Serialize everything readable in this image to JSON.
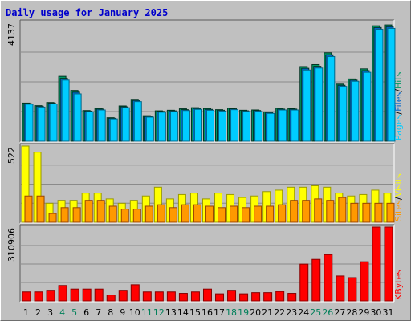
{
  "chart_data": {
    "type": "bar",
    "title": "Daily usage for January 2025",
    "categories": [
      "1",
      "2",
      "3",
      "4",
      "5",
      "6",
      "7",
      "8",
      "9",
      "10",
      "11",
      "12",
      "13",
      "14",
      "15",
      "16",
      "17",
      "18",
      "19",
      "20",
      "21",
      "22",
      "23",
      "24",
      "25",
      "26",
      "27",
      "28",
      "29",
      "30",
      "31"
    ],
    "weekend_days": [
      "4",
      "5",
      "11",
      "12",
      "18",
      "19",
      "25",
      "26"
    ],
    "panels": [
      {
        "name": "pages-files-hits",
        "max_label": "4137",
        "ymax": 4137,
        "legend": [
          "Pages",
          "/",
          "Files",
          "/",
          "Hits"
        ],
        "series": [
          {
            "name": "Hits",
            "color": "#009966",
            "values": [
              1330,
              1240,
              1350,
              2260,
              1770,
              1070,
              1150,
              820,
              1230,
              1460,
              890,
              1060,
              1080,
              1130,
              1170,
              1140,
              1100,
              1150,
              1080,
              1090,
              1020,
              1150,
              1140,
              2600,
              2670,
              3080,
              1990,
              2170,
              2520,
              4020,
              4050
            ]
          },
          {
            "name": "Files",
            "color": "#0066cc",
            "values": [
              1310,
              1220,
              1330,
              2190,
              1710,
              1050,
              1120,
              800,
              1200,
              1420,
              860,
              1040,
              1060,
              1100,
              1140,
              1110,
              1080,
              1130,
              1060,
              1070,
              1000,
              1120,
              1120,
              2540,
              2610,
              3010,
              1950,
              2130,
              2460,
              3960,
              3990
            ]
          },
          {
            "name": "Pages",
            "color": "#00ccff",
            "values": [
              1290,
              1190,
              1300,
              2130,
              1650,
              1030,
              1090,
              780,
              1170,
              1380,
              840,
              1010,
              1030,
              1070,
              1110,
              1080,
              1050,
              1100,
              1040,
              1040,
              970,
              1090,
              1090,
              2480,
              2550,
              2950,
              1910,
              2090,
              2400,
              3900,
              3930
            ]
          }
        ]
      },
      {
        "name": "visits-sites",
        "max_label": "522",
        "ymax": 522,
        "legend": [
          "Sites",
          "/",
          "Visits"
        ],
        "series": [
          {
            "name": "Visits",
            "color": "#ffff00",
            "values": [
              522,
              480,
              130,
              150,
              150,
              200,
              200,
              160,
              130,
              150,
              180,
              240,
              160,
              190,
              200,
              160,
              200,
              190,
              170,
              180,
              210,
              220,
              240,
              240,
              250,
              240,
              200,
              180,
              190,
              220,
              200
            ]
          },
          {
            "name": "Sites",
            "color": "#ff9900",
            "values": [
              180,
              180,
              60,
              100,
              100,
              150,
              150,
              110,
              90,
              90,
              110,
              120,
              100,
              120,
              120,
              110,
              100,
              110,
              100,
              110,
              110,
              120,
              150,
              150,
              160,
              150,
              170,
              130,
              130,
              130,
              130
            ]
          }
        ]
      },
      {
        "name": "kbytes",
        "max_label": "310906",
        "ymax": 310906,
        "legend": [
          "KBytes"
        ],
        "series": [
          {
            "name": "KBytes",
            "color": "#ff0000",
            "values": [
              38000,
              38000,
              45000,
              65000,
              50000,
              50000,
              50000,
              25000,
              45000,
              68000,
              38000,
              38000,
              38000,
              32000,
              38000,
              50000,
              30000,
              45000,
              30000,
              35000,
              35000,
              40000,
              32000,
              155000,
              175000,
              195000,
              105000,
              98000,
              165000,
              310906,
              310906
            ]
          }
        ]
      }
    ]
  }
}
